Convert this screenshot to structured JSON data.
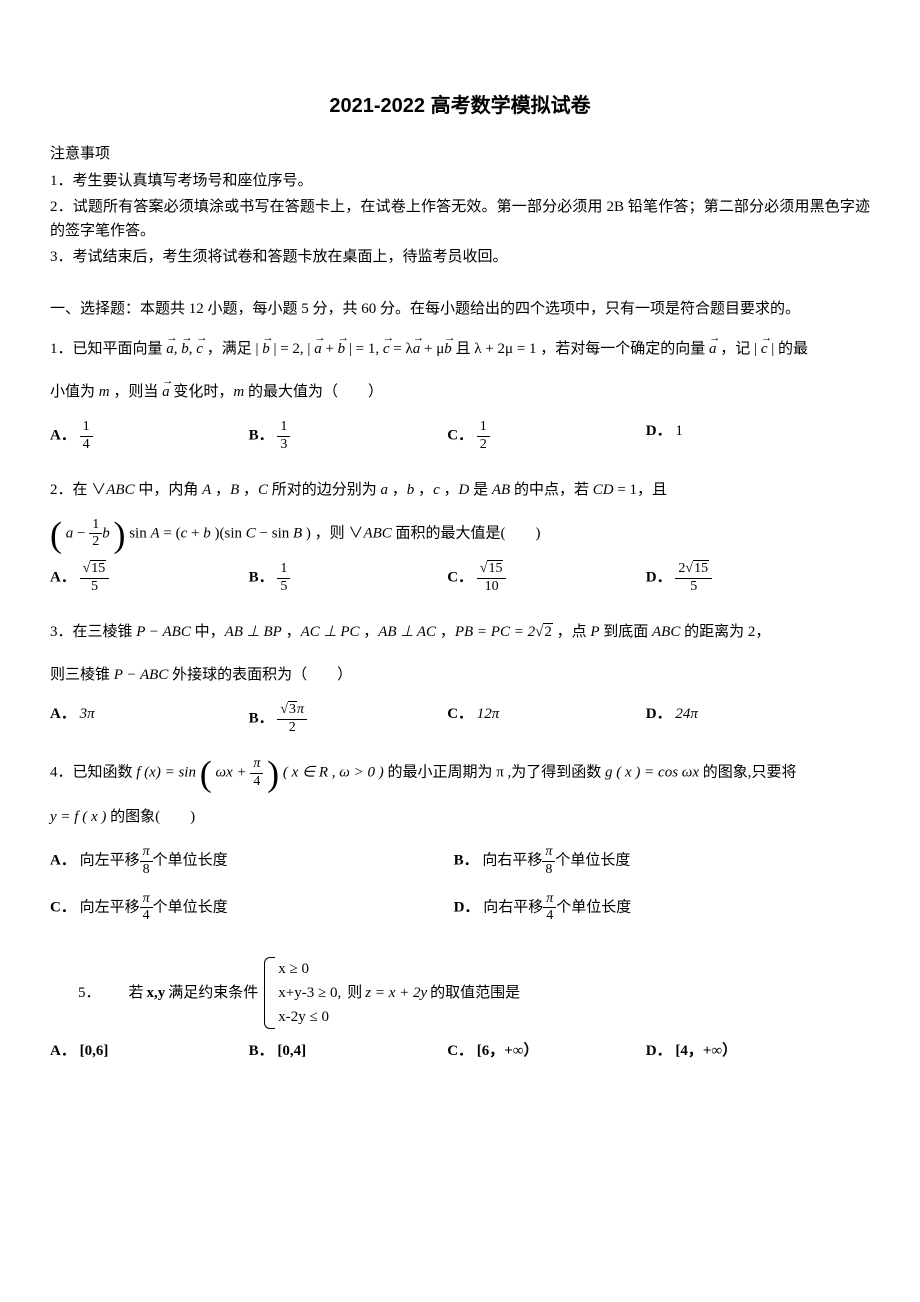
{
  "title": "2021-2022 高考数学模拟试卷",
  "instructions_heading": "注意事项",
  "instructions": [
    "1．考生要认真填写考场号和座位序号。",
    "2．试题所有答案必须填涂或书写在答题卡上，在试卷上作答无效。第一部分必须用 2B 铅笔作答；第二部分必须用黑色字迹的签字笔作答。",
    "3．考试结束后，考生须将试卷和答题卡放在桌面上，待监考员收回。"
  ],
  "section1_heading": "一、选择题：本题共 12 小题，每小题 5 分，共 60 分。在每小题给出的四个选项中，只有一项是符合题目要求的。",
  "q1": {
    "prefix": "1．已知平面向量",
    "mid1": "，满足",
    "eq1_a": "| ",
    "eq1_b": " | = 2, | ",
    "eq1_c": " | = 1, ",
    "eq1_d": " = λ",
    "eq1_e": " + μ",
    "eq1_f": " 且 λ + 2μ = 1",
    "mid2": "，若对每一个确定的向量",
    "mid3": "，记 | ",
    "mid4": " | 的最",
    "line2a": "小值为 ",
    "line2b": "，则当 ",
    "line2c": " 变化时，",
    "line2d": " 的最大值为（　　）",
    "options": {
      "A": {
        "label": "A．",
        "num": "1",
        "den": "4"
      },
      "B": {
        "label": "B．",
        "num": "1",
        "den": "3"
      },
      "C": {
        "label": "C．",
        "num": "1",
        "den": "2"
      },
      "D": {
        "label": "D．",
        "value": "1"
      }
    }
  },
  "q2": {
    "text_a": "2．在 ∨",
    "text_b": " 中，内角 ",
    "text_c": "，",
    "text_d": "，",
    "text_e": " 所对的边分别为 ",
    "text_f": "，",
    "text_g": "，",
    "text_h": "，",
    "text_i": " 是 ",
    "text_j": " 的中点，若 ",
    "text_k": " = 1，且",
    "eq_mid": "sin ",
    "eq_mid2": " = (",
    "eq_mid3": " + ",
    "eq_mid4": ")(sin ",
    "eq_mid5": " − sin ",
    "eq_mid6": ")",
    "tail": "，则 ∨",
    "tail2": " 面积的最大值是(　　)",
    "options": {
      "A": {
        "label": "A．",
        "num": "15",
        "den": "5"
      },
      "B": {
        "label": "B．",
        "num": "1",
        "den": "5"
      },
      "C": {
        "label": "C．",
        "num": "15",
        "den": "10"
      },
      "D": {
        "label": "D．",
        "coef": "2",
        "num": "15",
        "den": "5"
      }
    }
  },
  "q3": {
    "text": "3．在三棱锥 ",
    "p1": " 中，",
    "p2": "，",
    "p3": "，",
    "p4": "，",
    "eq": " = 2",
    "p5": "，点 ",
    "p6": " 到底面 ",
    "p7": " 的距离为 2，",
    "line2a": "则三棱锥 ",
    "line2b": " 外接球的表面积为（　　）",
    "PABC": "P − ABC",
    "ABperpBP": "AB ⊥ BP",
    "ACperpPC": "AC ⊥ PC",
    "ABperpAC": "AB ⊥ AC",
    "PBeqPC": "PB = PC",
    "sqrt2": "2",
    "P": "P",
    "ABC": "ABC",
    "options": {
      "A": {
        "label": "A．",
        "value": "3π"
      },
      "B": {
        "label": "B．",
        "num": "3",
        "suffix": "π",
        "den": "2"
      },
      "C": {
        "label": "C．",
        "value": "12π"
      },
      "D": {
        "label": "D．",
        "value": "24π"
      }
    }
  },
  "q4": {
    "text1": "4．已知函数 ",
    "fx": "f (x) = sin",
    "arg_pre": "ωx + ",
    "arg_num": "π",
    "arg_den": "4",
    "cond": "( x ∈ R , ω > 0 )",
    "text2": "的最小正周期为 π ,为了得到函数 ",
    "gx": "g ( x ) = cos ωx",
    "text3": " 的图象,只要将",
    "line2": " 的图象(　　)",
    "yfx": "y = f ( x )",
    "options": {
      "A": {
        "label": "A．",
        "prefix": "向左平移",
        "num": "π",
        "den": "8",
        "suffix": "个单位长度"
      },
      "B": {
        "label": "B．",
        "prefix": "向右平移",
        "num": "π",
        "den": "8",
        "suffix": "个单位长度"
      },
      "C": {
        "label": "C．",
        "prefix": "向左平移",
        "num": "π",
        "den": "4",
        "suffix": "个单位长度"
      },
      "D": {
        "label": "D．",
        "prefix": "向右平移",
        "num": "π",
        "den": "4",
        "suffix": "个单位长度"
      }
    }
  },
  "q5": {
    "num": "5．",
    "text1": "若 ",
    "xy": "x,y",
    "text2": " 满足约束条件",
    "c1": "x ≥ 0",
    "c2": "x+y-3 ≥ 0,",
    "c3": "x-2y ≤ 0",
    "text3": "则",
    "z": "z = x + 2y",
    "text4": " 的取值范围是",
    "options": {
      "A": {
        "label": "A．",
        "value": "[0,6]"
      },
      "B": {
        "label": "B．",
        "value": "[0,4]"
      },
      "C": {
        "label": "C．",
        "value": "[6，+∞）"
      },
      "D": {
        "label": "D．",
        "value": "[4，+∞）"
      }
    }
  }
}
